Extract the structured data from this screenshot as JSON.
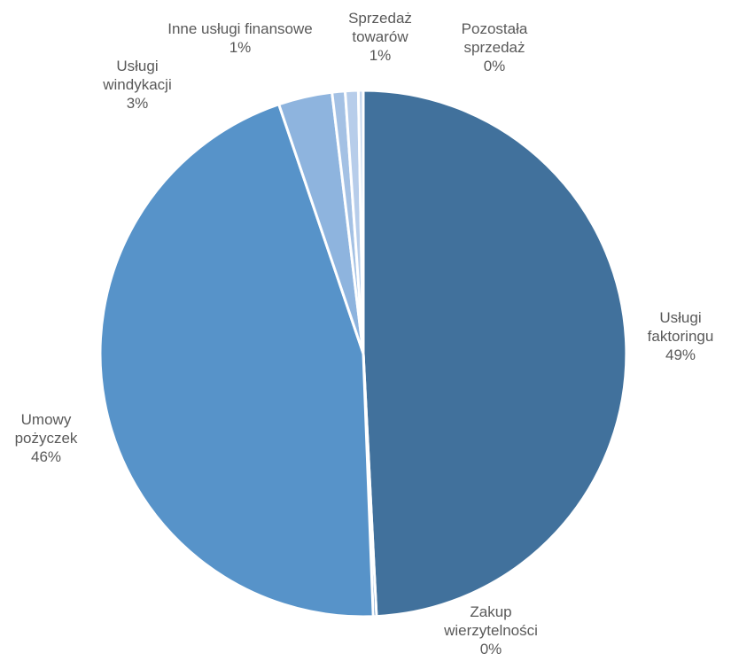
{
  "chart_data": {
    "type": "pie",
    "start_angle_deg": 0,
    "direction": "clockwise",
    "slices": [
      {
        "label_lines": [
          "Usługi",
          "faktoringu"
        ],
        "percent_label": "49%",
        "value": 49.2,
        "color": "#41719c"
      },
      {
        "label_lines": [
          "Zakup",
          "wierzytelności"
        ],
        "percent_label": "0%",
        "value": 0.2,
        "color": "#4e81ba"
      },
      {
        "label_lines": [
          "Umowy",
          "pożyczek"
        ],
        "percent_label": "46%",
        "value": 45.4,
        "color": "#5793c9"
      },
      {
        "label_lines": [
          "Usługi",
          "windykacji"
        ],
        "percent_label": "3%",
        "value": 3.3,
        "color": "#8eb4de"
      },
      {
        "label_lines": [
          "Inne usługi finansowe"
        ],
        "percent_label": "1%",
        "value": 0.8,
        "color": "#a4c1e4"
      },
      {
        "label_lines": [
          "Sprzedaż",
          "towarów"
        ],
        "percent_label": "1%",
        "value": 0.8,
        "color": "#b7cdea"
      },
      {
        "label_lines": [
          "Pozostała",
          "sprzedaż"
        ],
        "percent_label": "0%",
        "value": 0.3,
        "color": "#c6d7ee"
      }
    ]
  }
}
